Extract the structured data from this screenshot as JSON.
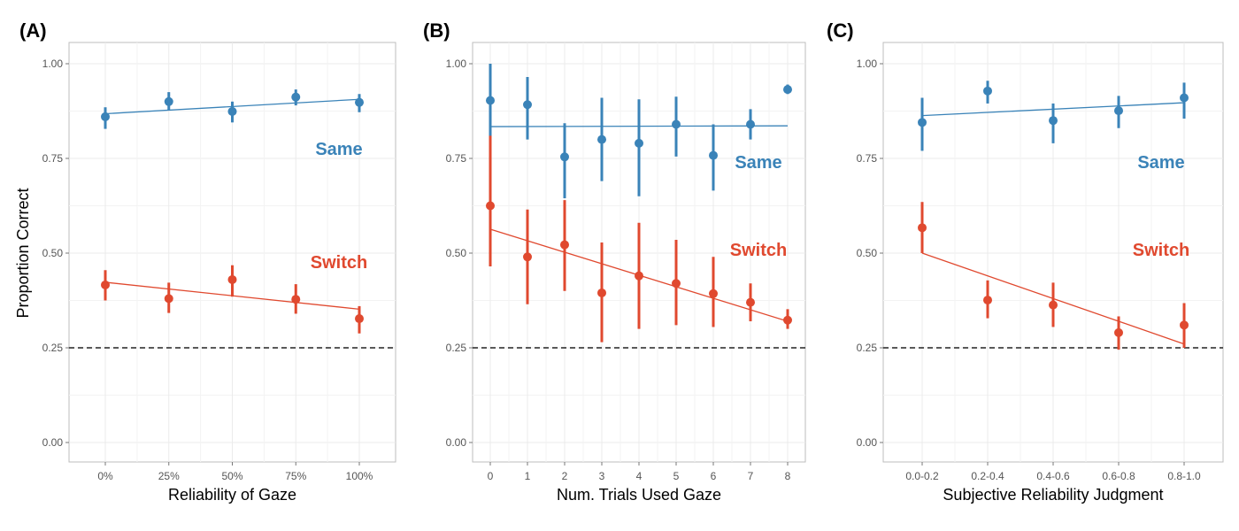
{
  "y_axis_label": "Proportion Correct",
  "colors": {
    "same": "#3a83b8",
    "switch": "#e0492f",
    "reference": "#222222",
    "grid": "#ebebeb",
    "frame": "#bdbdbd"
  },
  "chart_data": [
    {
      "panel": "(A)",
      "type": "scatter",
      "xlabel": "Reliability of Gaze",
      "ylabel": "Proportion Correct",
      "categories": [
        "0%",
        "25%",
        "50%",
        "75%",
        "100%"
      ],
      "ylim": [
        0,
        1
      ],
      "yticks": [
        "0.00",
        "0.25",
        "0.50",
        "0.75",
        "1.00"
      ],
      "reference_line": 0.25,
      "grid": true,
      "series": [
        {
          "name": "Same",
          "key": "same",
          "values": [
            0.86,
            0.9,
            0.874,
            0.912,
            0.898
          ],
          "lower": [
            0.828,
            0.878,
            0.845,
            0.89,
            0.872
          ],
          "upper": [
            0.885,
            0.925,
            0.9,
            0.932,
            0.92
          ],
          "fit": [
            0.868,
            0.906
          ]
        },
        {
          "name": "Switch",
          "key": "switch",
          "values": [
            0.416,
            0.38,
            0.43,
            0.378,
            0.327
          ],
          "lower": [
            0.375,
            0.342,
            0.385,
            0.34,
            0.288
          ],
          "upper": [
            0.455,
            0.422,
            0.468,
            0.418,
            0.36
          ],
          "fit": [
            0.423,
            0.352
          ]
        }
      ]
    },
    {
      "panel": "(B)",
      "type": "scatter",
      "xlabel": "Num. Trials Used Gaze",
      "ylabel": "",
      "categories": [
        "0",
        "1",
        "2",
        "3",
        "4",
        "5",
        "6",
        "7",
        "8"
      ],
      "ylim": [
        0,
        1
      ],
      "yticks": [
        "0.00",
        "0.25",
        "0.50",
        "0.75",
        "1.00"
      ],
      "reference_line": 0.25,
      "grid": true,
      "series": [
        {
          "name": "Same",
          "key": "same",
          "values": [
            0.903,
            0.892,
            0.754,
            0.8,
            0.79,
            0.84,
            0.758,
            0.84,
            0.932
          ],
          "lower": [
            0.8,
            0.8,
            0.645,
            0.69,
            0.65,
            0.755,
            0.665,
            0.8,
            0.92
          ],
          "upper": [
            1.0,
            0.965,
            0.843,
            0.91,
            0.906,
            0.913,
            0.84,
            0.88,
            0.945
          ],
          "fit": [
            0.834,
            0.836
          ]
        },
        {
          "name": "Switch",
          "key": "switch",
          "values": [
            0.625,
            0.49,
            0.522,
            0.395,
            0.44,
            0.42,
            0.393,
            0.37,
            0.323
          ],
          "lower": [
            0.465,
            0.365,
            0.4,
            0.265,
            0.3,
            0.31,
            0.305,
            0.32,
            0.3
          ],
          "upper": [
            0.81,
            0.615,
            0.64,
            0.528,
            0.58,
            0.535,
            0.49,
            0.42,
            0.352
          ],
          "fit": [
            0.563,
            0.32
          ]
        }
      ]
    },
    {
      "panel": "(C)",
      "type": "scatter",
      "xlabel": "Subjective Reliability Judgment",
      "ylabel": "",
      "categories": [
        "0.0-0.2",
        "0.2-0.4",
        "0.4-0.6",
        "0.6-0.8",
        "0.8-1.0"
      ],
      "ylim": [
        0,
        1
      ],
      "yticks": [
        "0.00",
        "0.25",
        "0.50",
        "0.75",
        "1.00"
      ],
      "reference_line": 0.25,
      "grid": true,
      "series": [
        {
          "name": "Same",
          "key": "same",
          "values": [
            0.845,
            0.928,
            0.85,
            0.876,
            0.91
          ],
          "lower": [
            0.77,
            0.895,
            0.79,
            0.83,
            0.855
          ],
          "upper": [
            0.91,
            0.955,
            0.895,
            0.915,
            0.95
          ],
          "fit": [
            0.863,
            0.897
          ]
        },
        {
          "name": "Switch",
          "key": "switch",
          "values": [
            0.567,
            0.376,
            0.363,
            0.29,
            0.31
          ],
          "lower": [
            0.5,
            0.328,
            0.305,
            0.245,
            0.25
          ],
          "upper": [
            0.635,
            0.428,
            0.422,
            0.333,
            0.368
          ],
          "fit": [
            0.5,
            0.26
          ]
        }
      ]
    }
  ]
}
